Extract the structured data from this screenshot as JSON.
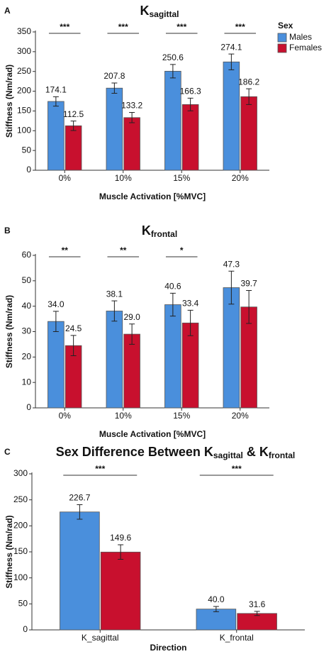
{
  "chart_data": [
    {
      "type": "bar",
      "panel": "A",
      "title_parts": [
        "K",
        "sagittal"
      ],
      "y_label": "Stiffness (Nm/rad)",
      "x_label": "Muscle Activation [%MVC]",
      "categories": [
        "0%",
        "10%",
        "15%",
        "20%"
      ],
      "series": [
        {
          "name": "Males",
          "color": "#4a8fdc",
          "values": [
            174.1,
            207.8,
            250.6,
            274.1
          ],
          "value_labels": [
            "174.1",
            "207.8",
            "250.6",
            "274.1"
          ],
          "errors": [
            12,
            13,
            17,
            20
          ]
        },
        {
          "name": "Females",
          "color": "#c8102e",
          "values": [
            112.5,
            133.2,
            166.3,
            186.2
          ],
          "value_labels": [
            "112.5",
            "133.2",
            "166.3",
            "186.2"
          ],
          "errors": [
            12,
            13,
            16,
            20
          ]
        }
      ],
      "significance": [
        "***",
        "***",
        "***",
        "***"
      ],
      "ylim": [
        0,
        350
      ],
      "yticks": [
        0,
        50,
        100,
        150,
        200,
        250,
        300,
        350
      ],
      "legend": "right",
      "legend_title": "Sex"
    },
    {
      "type": "bar",
      "panel": "B",
      "title_parts": [
        "K",
        "frontal"
      ],
      "y_label": "Stiffness (Nm/rad)",
      "x_label": "Muscle Activation [%MVC]",
      "categories": [
        "0%",
        "10%",
        "15%",
        "20%"
      ],
      "series": [
        {
          "name": "Males",
          "color": "#4a8fdc",
          "values": [
            34.0,
            38.1,
            40.6,
            47.3
          ],
          "value_labels": [
            "34.0",
            "38.1",
            "40.6",
            "47.3"
          ],
          "errors": [
            4,
            4,
            4.5,
            6.5
          ]
        },
        {
          "name": "Females",
          "color": "#c8102e",
          "values": [
            24.5,
            29.0,
            33.4,
            39.7
          ],
          "value_labels": [
            "24.5",
            "29.0",
            "33.4",
            "39.7"
          ],
          "errors": [
            4,
            4,
            5,
            6.5
          ]
        }
      ],
      "significance": [
        "**",
        "**",
        "*",
        null
      ],
      "ylim": [
        0,
        60
      ],
      "yticks": [
        0,
        10,
        20,
        30,
        40,
        50,
        60
      ]
    },
    {
      "type": "bar",
      "panel": "C",
      "title_parts": [
        "Sex Difference Between K",
        "sagittal",
        " & K",
        "frontal"
      ],
      "y_label": "Stiffness (Nm/rad)",
      "x_label": "Direction",
      "categories": [
        "K_sagittal",
        "K_frontal"
      ],
      "series": [
        {
          "name": "Males",
          "color": "#4a8fdc",
          "values": [
            226.7,
            40.0
          ],
          "value_labels": [
            "226.7",
            "40.0"
          ],
          "errors": [
            14,
            5
          ]
        },
        {
          "name": "Females",
          "color": "#c8102e",
          "values": [
            149.6,
            31.6
          ],
          "value_labels": [
            "149.6",
            "31.6"
          ],
          "errors": [
            14,
            4
          ]
        }
      ],
      "significance": [
        "***",
        "***"
      ],
      "ylim": [
        0,
        300
      ],
      "yticks": [
        0,
        50,
        100,
        150,
        200,
        250,
        300
      ]
    }
  ]
}
